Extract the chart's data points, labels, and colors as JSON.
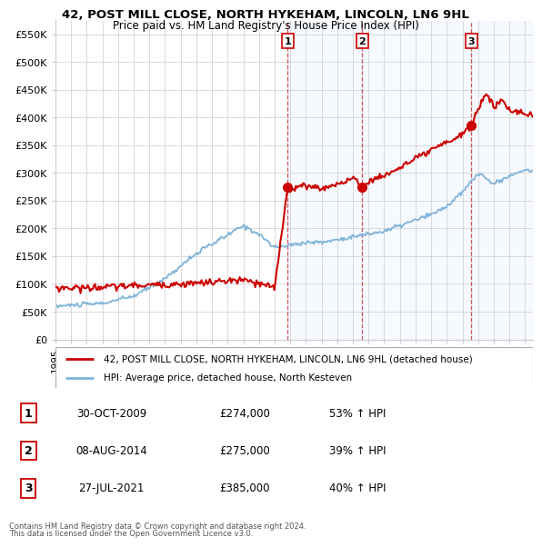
{
  "title": "42, POST MILL CLOSE, NORTH HYKEHAM, LINCOLN, LN6 9HL",
  "subtitle": "Price paid vs. HM Land Registry's House Price Index (HPI)",
  "ylabel_ticks": [
    "£0",
    "£50K",
    "£100K",
    "£150K",
    "£200K",
    "£250K",
    "£300K",
    "£350K",
    "£400K",
    "£450K",
    "£500K",
    "£550K"
  ],
  "ytick_values": [
    0,
    50000,
    100000,
    150000,
    200000,
    250000,
    300000,
    350000,
    400000,
    450000,
    500000,
    550000
  ],
  "xmin": 1995.0,
  "xmax": 2025.5,
  "ymin": 0,
  "ymax": 575000,
  "sale_dates": [
    2009.83,
    2014.6,
    2021.57
  ],
  "sale_prices": [
    274000,
    275000,
    385000
  ],
  "sale_labels": [
    "1",
    "2",
    "3"
  ],
  "red_line_color": "#cc0000",
  "blue_line_color": "#7fb3d8",
  "shade_color": "#ddeeff",
  "dashed_line_color": "#cc4444",
  "legend_line1": "42, POST MILL CLOSE, NORTH HYKEHAM, LINCOLN, LN6 9HL (detached house)",
  "legend_line2": "HPI: Average price, detached house, North Kesteven",
  "table_rows": [
    [
      "1",
      "30-OCT-2009",
      "£274,000",
      "53% ↑ HPI"
    ],
    [
      "2",
      "08-AUG-2014",
      "£275,000",
      "39% ↑ HPI"
    ],
    [
      "3",
      "27-JUL-2021",
      "£385,000",
      "40% ↑ HPI"
    ]
  ],
  "footnote1": "Contains HM Land Registry data © Crown copyright and database right 2024.",
  "footnote2": "This data is licensed under the Open Government Licence v3.0.",
  "background_color": "#ffffff",
  "grid_color": "#cccccc"
}
